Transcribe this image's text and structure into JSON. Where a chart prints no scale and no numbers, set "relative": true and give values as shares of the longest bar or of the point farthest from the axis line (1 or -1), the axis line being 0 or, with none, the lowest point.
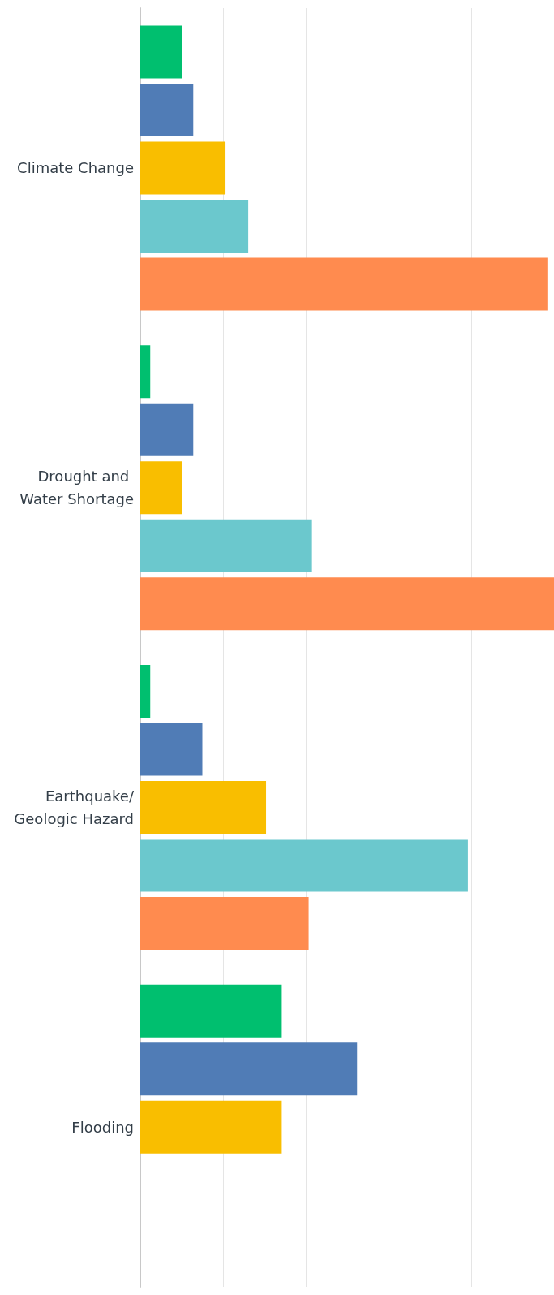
{
  "chart_data": {
    "type": "bar",
    "orientation": "horizontal",
    "relative": true,
    "grid": "x",
    "categories": [
      "Climate Change",
      "Drought and Water Shortage",
      "Earthquake/Geologic Hazard",
      "Flooding"
    ],
    "series": [
      {
        "color": "#00bf6f",
        "values": [
          0.1,
          0.024,
          0.024,
          0.342
        ]
      },
      {
        "color": "#507cb6",
        "values": [
          0.128,
          0.128,
          0.15,
          0.524
        ]
      },
      {
        "color": "#f9be00",
        "values": [
          0.206,
          0.1,
          0.304,
          0.342
        ]
      },
      {
        "color": "#6bc8cd",
        "values": [
          0.261,
          0.415,
          0.792,
          null
        ]
      },
      {
        "color": "#ff8b4f",
        "values": [
          0.984,
          1,
          0.407,
          null
        ]
      }
    ]
  }
}
